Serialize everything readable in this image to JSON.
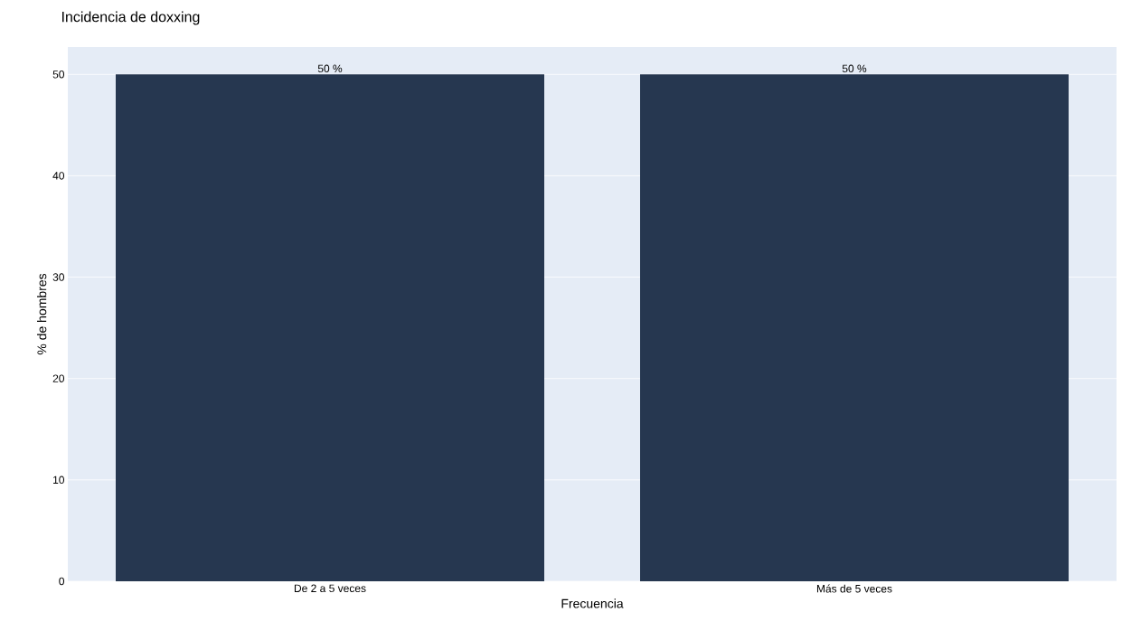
{
  "chart_data": {
    "type": "bar",
    "title": "Incidencia de doxxing",
    "xlabel": "Frecuencia",
    "ylabel": "% de hombres",
    "categories": [
      "De 2 a 5 veces",
      "Más de 5 veces"
    ],
    "values": [
      50,
      50
    ],
    "value_labels": [
      "50 %",
      "50 %"
    ],
    "color": "#263750",
    "ylim": [
      0,
      52.7
    ],
    "yticks": [
      0,
      10,
      20,
      30,
      40,
      50
    ],
    "grid": "y"
  }
}
